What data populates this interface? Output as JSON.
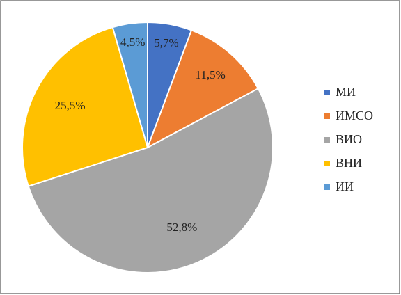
{
  "chart_data": {
    "type": "pie",
    "categories": [
      "МИ",
      "ИМСО",
      "ВИО",
      "ВНИ",
      "ИИ"
    ],
    "values": [
      5.7,
      11.5,
      52.8,
      25.5,
      4.5
    ],
    "value_labels": [
      "5,7%",
      "11,5%",
      "52,8%",
      "25,5%",
      "4,5%"
    ],
    "colors": [
      "#4472c4",
      "#ed7d31",
      "#a5a5a5",
      "#ffc000",
      "#5b9bd5"
    ],
    "legend": "right"
  }
}
